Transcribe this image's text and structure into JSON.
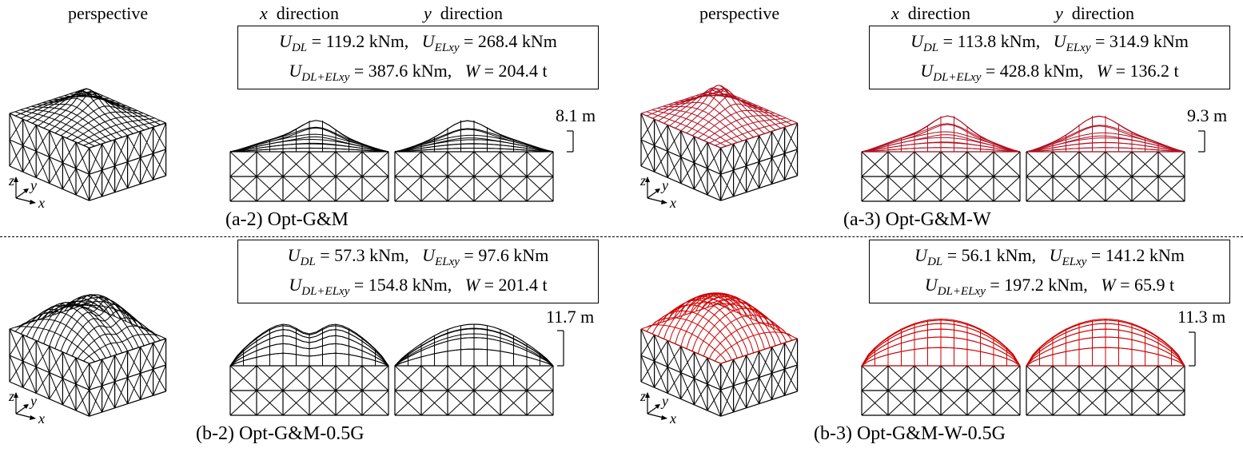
{
  "labels": {
    "perspective": "perspective",
    "x_var": "x",
    "x_word": "direction",
    "y_var": "y",
    "y_word": "direction",
    "axis_z": "z",
    "axis_y": "y",
    "axis_x": "x"
  },
  "panels": [
    {
      "id": "a2",
      "caption": "(a-2) Opt-G&M",
      "U_DL": "119.2 kNm",
      "U_ELxy": "268.4 kNm",
      "U_DL_ELxy": "387.6 kNm",
      "W": "204.4 t",
      "height": "8.1 m",
      "roof_color": "#000000",
      "shape": "bumpy",
      "height_fraction": 0.55
    },
    {
      "id": "a3",
      "caption": "(a-3) Opt-G&M-W",
      "U_DL": "113.8 kNm",
      "U_ELxy": "314.9 kNm",
      "U_DL_ELxy": "428.8 kNm",
      "W": "136.2 t",
      "height": "9.3 m",
      "roof_color": "#b01020",
      "shape": "bumpy",
      "height_fraction": 0.63
    },
    {
      "id": "b2",
      "caption": "(b-2) Opt-G&M-0.5G",
      "U_DL": "57.3 kNm",
      "U_ELxy": "97.6 kNm",
      "U_DL_ELxy": "154.8 kNm",
      "W": "201.4 t",
      "height": "11.7 m",
      "roof_color": "#000000",
      "shape": "double",
      "height_fraction": 0.82
    },
    {
      "id": "b3",
      "caption": "(b-3) Opt-G&M-W-0.5G",
      "U_DL": "56.1 kNm",
      "U_ELxy": "141.2 kNm",
      "U_DL_ELxy": "197.2 kNm",
      "W": "65.9 t",
      "height": "11.3 m",
      "roof_color": "#cc0000",
      "shape": "dome",
      "height_fraction": 0.78
    }
  ],
  "symbols": {
    "U": "U",
    "DL": "DL",
    "ELxy": "ELxy",
    "DL_ELxy": "DL+ELxy",
    "W": "W"
  }
}
